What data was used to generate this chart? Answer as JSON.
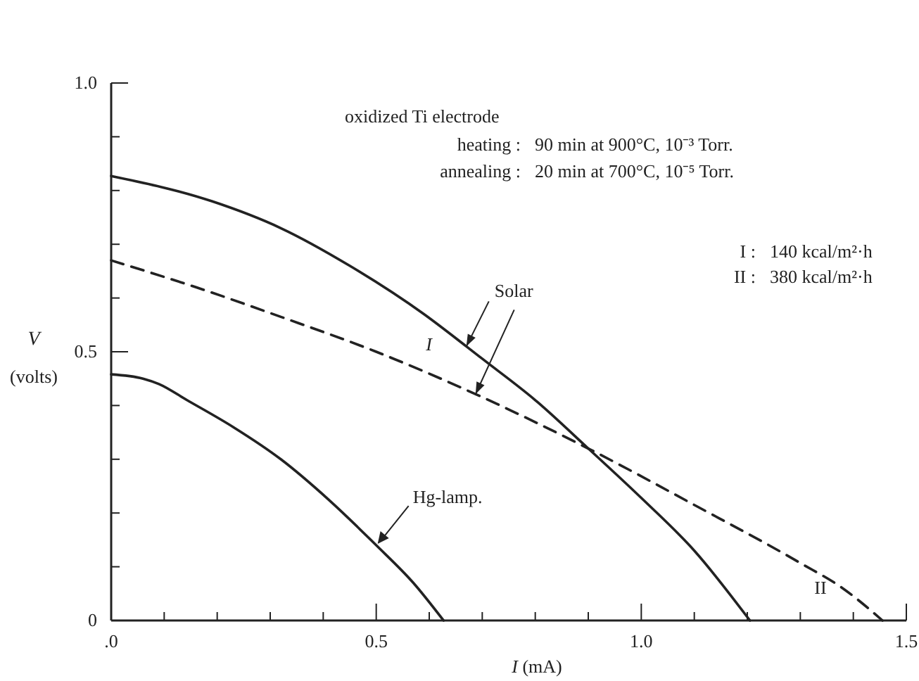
{
  "chart_data": {
    "type": "line",
    "xlabel": "I (mA)",
    "ylabel": "V (volts)",
    "xlim": [
      0,
      1.5
    ],
    "ylim": [
      0,
      1.0
    ],
    "xticks": [
      {
        "value": 0,
        "label": ".0"
      },
      {
        "value": 0.1,
        "label": null
      },
      {
        "value": 0.2,
        "label": null
      },
      {
        "value": 0.3,
        "label": null
      },
      {
        "value": 0.4,
        "label": null
      },
      0.5,
      {
        "value": 0.6,
        "label": null
      },
      {
        "value": 0.7,
        "label": null
      },
      {
        "value": 0.8,
        "label": null
      },
      {
        "value": 0.9,
        "label": null
      },
      {
        "value": 1.0,
        "label": "1.0"
      },
      {
        "value": 1.1,
        "label": null
      },
      {
        "value": 1.2,
        "label": null
      },
      {
        "value": 1.3,
        "label": null
      },
      {
        "value": 1.4,
        "label": null
      },
      1.5
    ],
    "yticks": [
      0,
      {
        "value": 0.1,
        "label": null
      },
      {
        "value": 0.2,
        "label": null
      },
      {
        "value": 0.3,
        "label": null
      },
      {
        "value": 0.4,
        "label": null
      },
      0.5,
      {
        "value": 0.6,
        "label": null
      },
      {
        "value": 0.7,
        "label": null
      },
      {
        "value": 0.8,
        "label": null
      },
      {
        "value": 0.9,
        "label": null
      },
      {
        "value": 1.0,
        "label": "1.0"
      }
    ],
    "grid": false,
    "series": [
      {
        "name": "I",
        "color": "#222222",
        "line_style": "solid",
        "x": [
          0,
          0.19,
          0.32,
          0.45,
          0.59,
          0.67,
          0.7,
          0.8,
          0.9,
          1.0,
          1.1,
          1.205
        ],
        "values": [
          0.827,
          0.78,
          0.73,
          0.66,
          0.57,
          0.51,
          0.487,
          0.41,
          0.32,
          0.228,
          0.13,
          0
        ]
      },
      {
        "name": "II",
        "color": "#222222",
        "line_style": "dashed",
        "x": [
          0,
          0.16,
          0.32,
          0.5,
          0.69,
          0.9,
          1.1,
          1.3,
          1.38,
          1.455
        ],
        "values": [
          0.67,
          0.62,
          0.565,
          0.5,
          0.42,
          0.32,
          0.215,
          0.107,
          0.06,
          0
        ]
      },
      {
        "name": "Hg-lamp.",
        "color": "#222222",
        "line_style": "solid",
        "x": [
          0,
          0.06,
          0.09,
          0.143,
          0.23,
          0.32,
          0.41,
          0.5,
          0.57,
          0.627
        ],
        "values": [
          0.458,
          0.45,
          0.44,
          0.41,
          0.36,
          0.3,
          0.225,
          0.14,
          0.07,
          0
        ]
      }
    ],
    "annotations": [
      "oxidized Ti electrode",
      "heating :  90 min at 900°C, 10⁻³ Torr.",
      "annealing :  20 min at 700°C, 10⁻⁵ Torr.",
      "I :  140 kcal/m²·h",
      "II :  380 kcal/m²·h",
      {
        "text": "Solar",
        "x": 0.67,
        "y": 0.51
      }
    ]
  }
}
